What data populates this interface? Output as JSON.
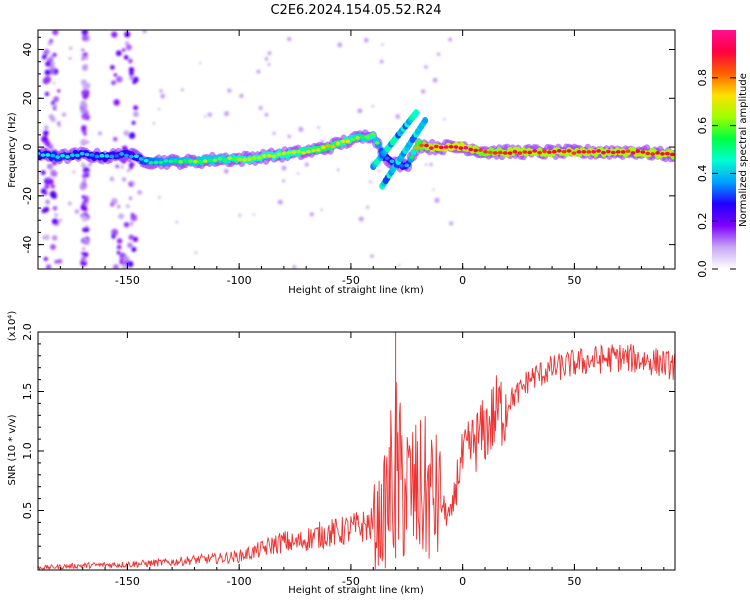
{
  "title": "C2E6.2024.154.05.52.R24",
  "chart_data": [
    {
      "type": "heatmap",
      "xlabel": "Height of straight line (km)",
      "ylabel": "Frequency (Hz)",
      "xlim": [
        -190,
        95
      ],
      "ylim": [
        -50,
        48
      ],
      "x_ticks": [
        -150,
        -100,
        -50,
        0,
        50
      ],
      "y_ticks": [
        -40,
        -20,
        0,
        20,
        40
      ],
      "x_tick_labels": [
        "-150",
        "-100",
        "-50",
        "0",
        "50"
      ],
      "y_tick_labels": [
        "-40",
        "-20",
        "0",
        "20",
        "40"
      ],
      "ridge": {
        "x": [
          -190,
          -180,
          -170,
          -160,
          -150,
          -140,
          -130,
          -120,
          -110,
          -100,
          -90,
          -80,
          -70,
          -60,
          -50,
          -45,
          -40,
          -35,
          -30,
          -25,
          -20,
          -15,
          -10,
          -5,
          0,
          5,
          10,
          20,
          30,
          40,
          50,
          60,
          70,
          80,
          90,
          95
        ],
        "y": [
          -3,
          -4,
          -3,
          -4,
          -3,
          -6,
          -6,
          -6,
          -5,
          -5,
          -4,
          -3,
          -2,
          0,
          3,
          4,
          5,
          -4,
          -7,
          -8,
          1,
          0,
          0,
          0,
          0,
          -1,
          -2,
          -2,
          -2,
          -2,
          -2,
          -2,
          -2,
          -2,
          -3,
          -3
        ],
        "amplitude": [
          0.35,
          0.4,
          0.35,
          0.35,
          0.3,
          0.45,
          0.5,
          0.55,
          0.55,
          0.6,
          0.6,
          0.6,
          0.65,
          0.7,
          0.6,
          0.55,
          0.6,
          0.35,
          0.3,
          0.35,
          0.75,
          0.85,
          0.9,
          0.9,
          0.9,
          0.85,
          0.8,
          0.85,
          0.85,
          0.85,
          0.85,
          0.85,
          0.85,
          0.85,
          0.85,
          0.85
        ]
      },
      "colorbar": {
        "label": "Normalized spectral amplitude",
        "range": [
          0,
          1
        ],
        "ticks": [
          0.0,
          0.2,
          0.4,
          0.6,
          0.8
        ],
        "tick_labels": [
          "0.0",
          "0.2",
          "0.4",
          "0.6",
          "0.8"
        ],
        "colors": [
          "#ffffff",
          "#c8a8f4",
          "#7f00ff",
          "#2000ff",
          "#00a0ff",
          "#00ffd0",
          "#00ff40",
          "#a0ff00",
          "#ffe000",
          "#ff6000",
          "#ff0040",
          "#ff1090"
        ]
      }
    },
    {
      "type": "line",
      "xlabel": "Height of straight line (km)",
      "ylabel": "SNR (10 * v/v)",
      "y_multiplier_label": "(x10⁴)",
      "xlim": [
        -190,
        95
      ],
      "ylim": [
        0,
        2.0
      ],
      "x_ticks": [
        -150,
        -100,
        -50,
        0,
        50
      ],
      "y_ticks": [
        0.5,
        1.0,
        1.5,
        2.0
      ],
      "x_tick_labels": [
        "-150",
        "-100",
        "-50",
        "0",
        "50"
      ],
      "y_tick_labels": [
        "0.5",
        "1.0",
        "1.5",
        "2.0"
      ],
      "series": [
        {
          "color": "#ee3333",
          "x": [
            -190,
            -170,
            -150,
            -130,
            -120,
            -110,
            -100,
            -95,
            -90,
            -85,
            -80,
            -75,
            -70,
            -65,
            -60,
            -55,
            -50,
            -45,
            -40,
            -36,
            -33,
            -30,
            -28,
            -25,
            -22,
            -20,
            -17,
            -15,
            -12,
            -10,
            -8,
            -5,
            -2,
            0,
            5,
            10,
            15,
            20,
            25,
            30,
            40,
            50,
            60,
            70,
            80,
            90,
            95
          ],
          "y": [
            0.02,
            0.04,
            0.05,
            0.07,
            0.09,
            0.1,
            0.12,
            0.15,
            0.18,
            0.22,
            0.25,
            0.23,
            0.27,
            0.3,
            0.32,
            0.33,
            0.36,
            0.38,
            0.4,
            0.45,
            0.7,
            0.95,
            0.8,
            0.75,
            0.7,
            0.7,
            0.72,
            0.7,
            0.65,
            0.6,
            0.5,
            0.45,
            0.85,
            0.95,
            1.1,
            1.2,
            1.35,
            1.42,
            1.5,
            1.62,
            1.7,
            1.75,
            1.78,
            1.8,
            1.78,
            1.75,
            1.72
          ]
        }
      ]
    }
  ]
}
